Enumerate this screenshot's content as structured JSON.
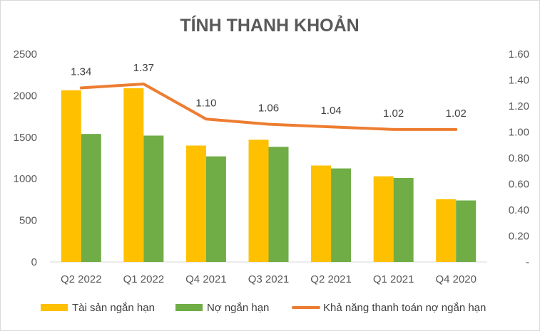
{
  "chart_data": {
    "type": "bar",
    "title": "TÍNH THANH KHOẢN",
    "categories": [
      "Q2 2022",
      "Q1 2022",
      "Q4 2021",
      "Q3 2021",
      "Q2 2021",
      "Q1 2021",
      "Q4 2020"
    ],
    "series": [
      {
        "name": "Tài sản ngắn hạn",
        "type": "bar",
        "axis": "left",
        "color": "#FFC000",
        "values": [
          2065,
          2090,
          1400,
          1470,
          1160,
          1030,
          755
        ]
      },
      {
        "name": "Nợ ngắn hạn",
        "type": "bar",
        "axis": "left",
        "color": "#70AD47",
        "values": [
          1540,
          1520,
          1270,
          1385,
          1125,
          1010,
          740
        ]
      },
      {
        "name": "Khả năng thanh toán nợ ngắn hạn",
        "type": "line",
        "axis": "right",
        "color": "#ED7D31",
        "values": [
          1.34,
          1.37,
          1.1,
          1.06,
          1.04,
          1.02,
          1.02
        ],
        "labels": [
          "1.34",
          "1.37",
          "1.10",
          "1.06",
          "1.04",
          "1.02",
          "1.02"
        ]
      }
    ],
    "left_axis": {
      "min": 0,
      "max": 2500,
      "ticks": [
        "0",
        "500",
        "1000",
        "1500",
        "2000",
        "2500"
      ]
    },
    "right_axis": {
      "min": 0,
      "max": 1.6,
      "ticks": [
        "-",
        "0.20",
        "0.40",
        "0.60",
        "0.80",
        "1.00",
        "1.20",
        "1.40",
        "1.60"
      ]
    },
    "grid": false,
    "legend_position": "bottom"
  }
}
